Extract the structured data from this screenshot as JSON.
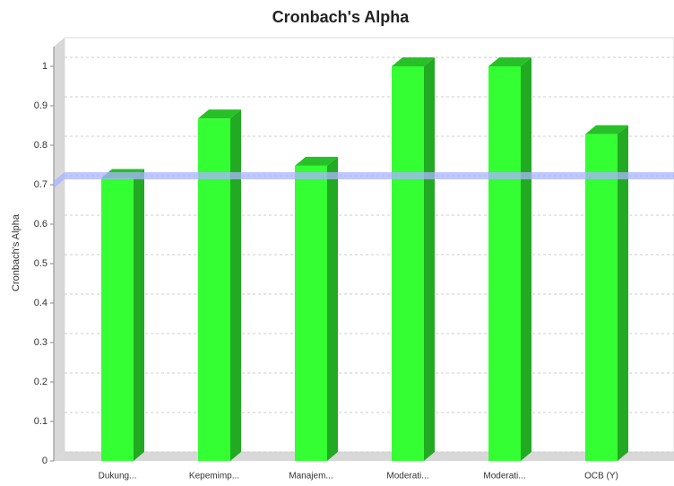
{
  "chart_data": {
    "type": "bar3d",
    "title": "Cronbach's Alpha",
    "ylabel": "Cronbach's Alpha",
    "categories": [
      "Dukung...",
      "Kepemimp...",
      "Manajem...",
      "Moderati...",
      "Moderati...",
      "OCB (Y)"
    ],
    "values": [
      0.717,
      0.868,
      0.748,
      1.0,
      1.0,
      0.828
    ],
    "color": "#33ff33",
    "threshold": 0.7,
    "threshold_color": "#aab4ff",
    "ylim": [
      0,
      1.05
    ],
    "yticks": [
      0,
      0.1,
      0.2,
      0.3,
      0.4,
      0.5,
      0.6,
      0.7,
      0.8,
      0.9,
      1
    ],
    "grid": true
  }
}
